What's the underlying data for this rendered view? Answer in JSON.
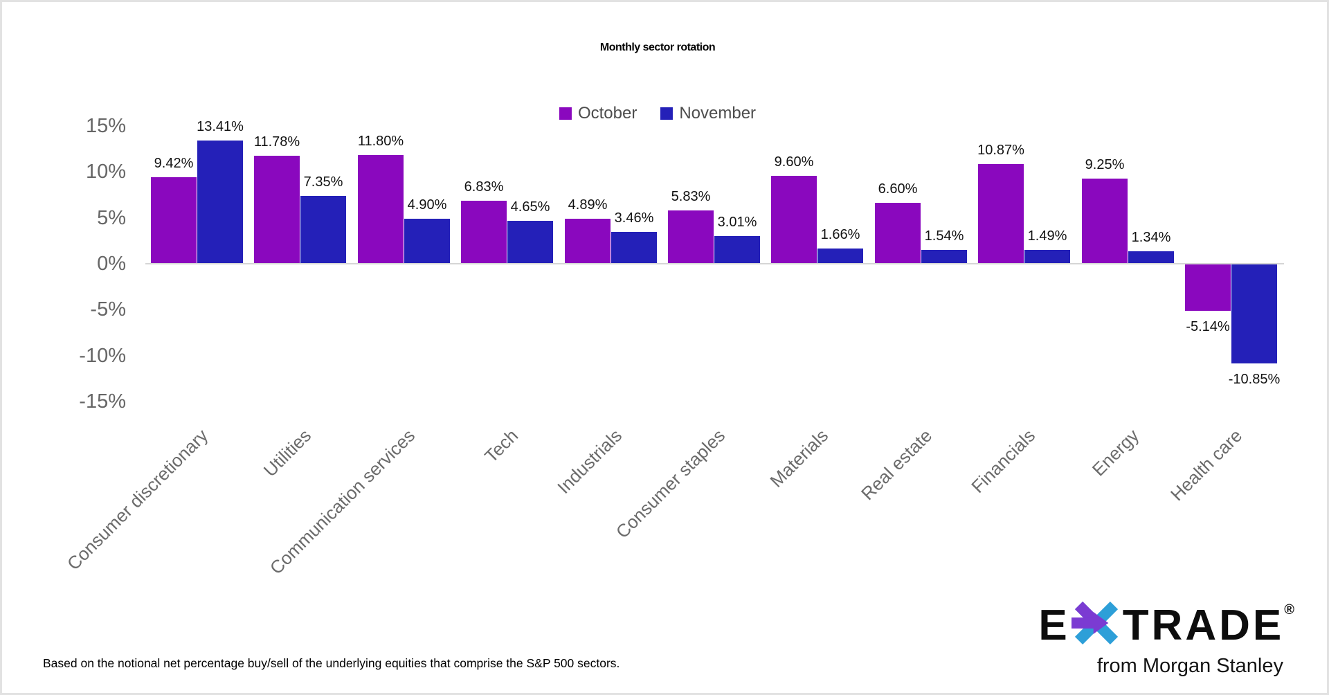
{
  "title": "Monthly sector rotation",
  "footnote": "Based on the notional net percentage buy/sell of the underlying equities that comprise the S&P 500 sectors.",
  "logo": {
    "e": "E",
    "trade": "TRADE",
    "reg": "®",
    "tagline": "from Morgan Stanley",
    "star_purple": "#7B3BD2",
    "star_blue": "#2D9FD8"
  },
  "chart_data": {
    "type": "bar",
    "title": "Monthly sector rotation",
    "categories": [
      "Consumer discretionary",
      "Utilities",
      "Communication services",
      "Tech",
      "Industrials",
      "Consumer staples",
      "Materials",
      "Real estate",
      "Financials",
      "Energy",
      "Health care"
    ],
    "series": [
      {
        "name": "October",
        "color": "#8A08BE",
        "values": [
          9.42,
          11.78,
          11.8,
          6.83,
          4.89,
          5.83,
          9.6,
          6.6,
          10.87,
          9.25,
          -5.14
        ]
      },
      {
        "name": "November",
        "color": "#2420B8",
        "values": [
          13.41,
          7.35,
          4.9,
          4.65,
          3.46,
          3.01,
          1.66,
          1.54,
          1.49,
          1.34,
          -10.85
        ]
      }
    ],
    "value_label_format": "0.00%",
    "yticks": [
      {
        "value": 15,
        "label": "15%"
      },
      {
        "value": 10,
        "label": "10%"
      },
      {
        "value": 5,
        "label": "5%"
      },
      {
        "value": 0,
        "label": "0%"
      },
      {
        "value": -5,
        "label": "-5%"
      },
      {
        "value": -10,
        "label": "-10%"
      },
      {
        "value": -15,
        "label": "-15%"
      }
    ],
    "ylim": [
      -15,
      15
    ],
    "grid": false,
    "legend_position": "top",
    "axis_line_color": "#d6d6d6"
  }
}
